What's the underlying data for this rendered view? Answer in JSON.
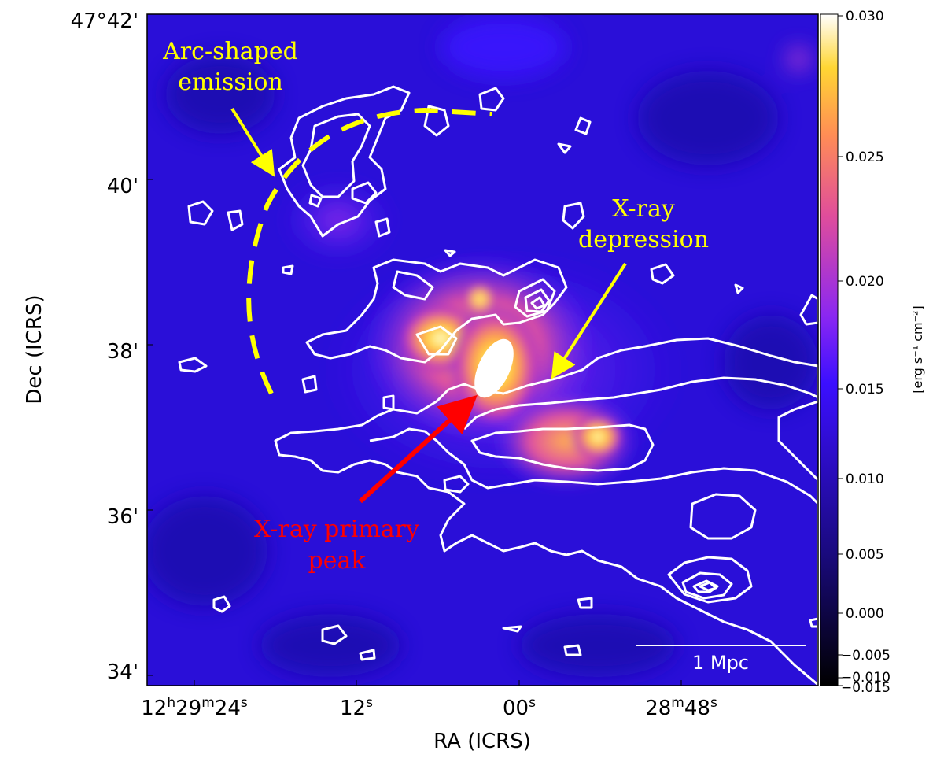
{
  "axes": {
    "xlabel": "RA (ICRS)",
    "ylabel": "Dec (ICRS)",
    "x_ticks": [
      {
        "parts": [
          [
            "12",
            "h"
          ],
          [
            "29",
            "m"
          ],
          [
            "24",
            "s"
          ]
        ]
      },
      {
        "parts": [
          [
            "12",
            "s"
          ]
        ]
      },
      {
        "parts": [
          [
            "00",
            "s"
          ]
        ]
      },
      {
        "parts": [
          [
            "28",
            "m"
          ],
          [
            "48",
            "s"
          ]
        ]
      }
    ],
    "y_ticks": [
      "47°42'",
      "40'",
      "38'",
      "36'",
      "34'"
    ]
  },
  "colorbar": {
    "title": "[erg s⁻¹ cm⁻²]",
    "tick_labels": [
      "0.030",
      "0.025",
      "0.020",
      "0.015",
      "0.010",
      "0.005",
      "0.000",
      "−0.005",
      "−0.010",
      "−0.015"
    ],
    "colors": [
      "#000000",
      "#3b0fff",
      "#8a27f2",
      "#e04d9b",
      "#ff8d55",
      "#ffd633",
      "#ffffff"
    ]
  },
  "annotations": {
    "arc": {
      "line1": "Arc-shaped",
      "line2": "emission",
      "color": "#ffff00"
    },
    "depression": {
      "line1": "X-ray",
      "line2": "depression",
      "color": "#ffff00"
    },
    "peak": {
      "line1": "X-ray primary",
      "line2": "peak",
      "color": "#ff0000"
    }
  },
  "scalebar": {
    "label": "1 Mpc"
  },
  "contour_color": "#ffffff"
}
